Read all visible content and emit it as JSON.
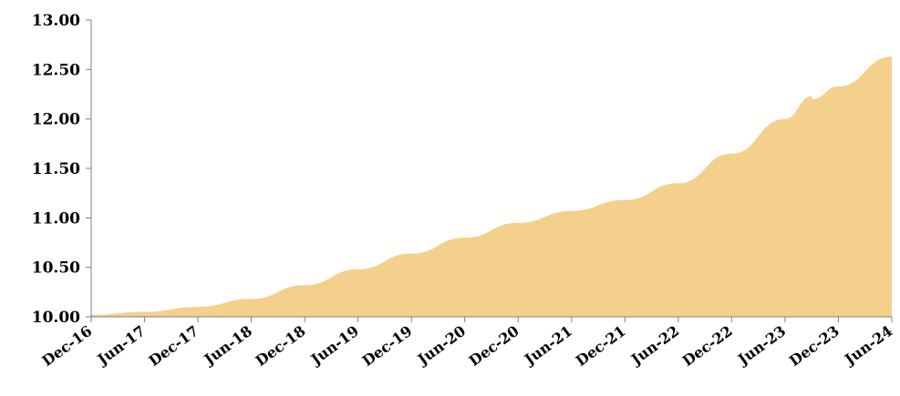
{
  "chart_data": {
    "type": "area",
    "title": "",
    "xlabel": "",
    "ylabel": "",
    "ylim": [
      10.0,
      13.0
    ],
    "grid": false,
    "fill_color": "#F4D08D",
    "axis_color": "#7f7f7f",
    "y_ticks": [
      "10.00",
      "10.50",
      "11.00",
      "11.50",
      "12.00",
      "12.50",
      "13.00"
    ],
    "x_tick_labels": [
      "Dec-16",
      "Jun-17",
      "Dec-17",
      "Jun-18",
      "Dec-18",
      "Jun-19",
      "Dec-19",
      "Jun-20",
      "Dec-20",
      "Jun-21",
      "Dec-21",
      "Jun-22",
      "Dec-22",
      "Jun-23",
      "Dec-23",
      "Jun-24"
    ],
    "series": [
      {
        "x": [
          "Dec-16",
          "Jun-17",
          "Dec-17",
          "Jun-18",
          "Dec-18",
          "Jun-19",
          "Dec-19",
          "Jun-20",
          "Dec-20",
          "Jun-21",
          "Dec-21",
          "Jun-22",
          "Dec-22",
          "Jun-23",
          "Sep-23",
          "Sep-23",
          "Dec-23",
          "Jun-24"
        ],
        "values": [
          10.02,
          10.05,
          10.1,
          10.18,
          10.32,
          10.48,
          10.64,
          10.8,
          10.95,
          11.07,
          11.18,
          11.35,
          11.65,
          12.0,
          12.23,
          12.2,
          12.33,
          12.63
        ]
      }
    ]
  }
}
